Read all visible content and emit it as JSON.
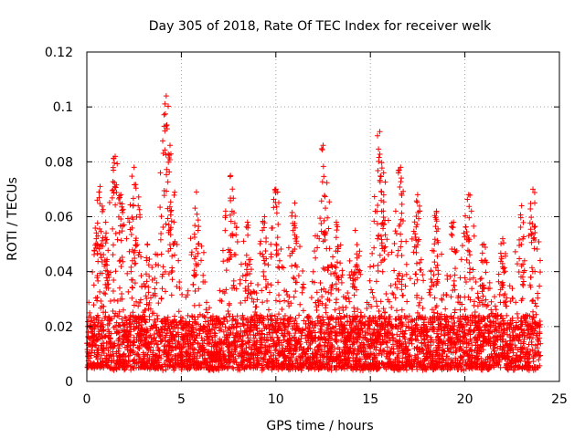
{
  "chart_data": {
    "type": "scatter",
    "title": "Day 305 of 2018, Rate Of TEC Index for receiver welk",
    "xlabel": "GPS time / hours",
    "ylabel": "ROTI / TECUs",
    "xlim": [
      0,
      25
    ],
    "ylim": [
      0,
      0.12
    ],
    "xticks": [
      0,
      5,
      10,
      15,
      20,
      25
    ],
    "xtick_labels": [
      "0",
      "5",
      "10",
      "15",
      "20",
      "25"
    ],
    "yticks": [
      0,
      0.02,
      0.04,
      0.06,
      0.08,
      0.1,
      0.12
    ],
    "ytick_labels": [
      "0",
      "0.02",
      "0.04",
      "0.06",
      "0.08",
      "0.1",
      "0.12"
    ],
    "grid": true,
    "marker": "+",
    "color": "#ff0000",
    "data_x_range": [
      0,
      24
    ],
    "series": [
      {
        "name": "ROTI",
        "note": "dense scatter; representative envelope peaks (hour, ROTI)",
        "peaks": [
          [
            0.5,
            0.052
          ],
          [
            0.7,
            0.071
          ],
          [
            1.0,
            0.058
          ],
          [
            1.5,
            0.082
          ],
          [
            1.8,
            0.068
          ],
          [
            2.5,
            0.078
          ],
          [
            3.2,
            0.05
          ],
          [
            4.2,
            0.104
          ],
          [
            4.4,
            0.086
          ],
          [
            5.8,
            0.069
          ],
          [
            7.6,
            0.075
          ],
          [
            8.5,
            0.058
          ],
          [
            9.4,
            0.06
          ],
          [
            10.0,
            0.07
          ],
          [
            11.0,
            0.065
          ],
          [
            12.5,
            0.086
          ],
          [
            13.2,
            0.058
          ],
          [
            14.2,
            0.055
          ],
          [
            15.5,
            0.091
          ],
          [
            15.7,
            0.076
          ],
          [
            16.6,
            0.078
          ],
          [
            17.5,
            0.068
          ],
          [
            18.5,
            0.062
          ],
          [
            19.4,
            0.058
          ],
          [
            20.2,
            0.068
          ],
          [
            21.0,
            0.05
          ],
          [
            22.0,
            0.052
          ],
          [
            23.0,
            0.064
          ],
          [
            23.6,
            0.07
          ]
        ]
      }
    ]
  }
}
